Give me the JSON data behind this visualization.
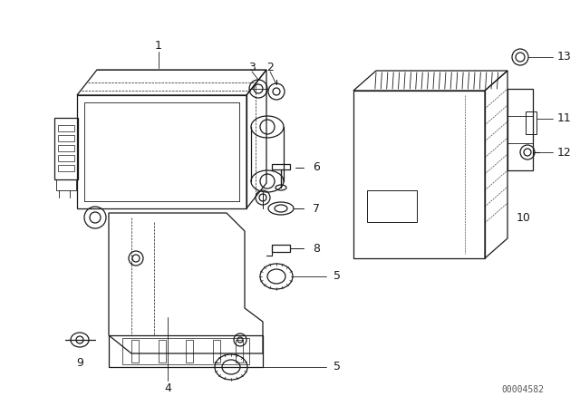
{
  "bg_color": "#ffffff",
  "line_color": "#1a1a1a",
  "text_color": "#1a1a1a",
  "fig_width": 6.4,
  "fig_height": 4.48,
  "dpi": 100,
  "watermark": "00004582"
}
